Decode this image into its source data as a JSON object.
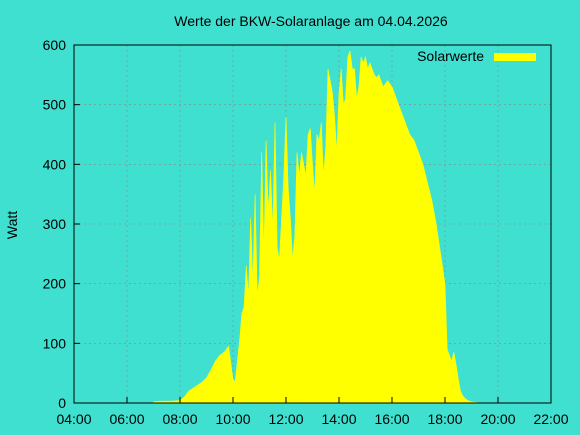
{
  "chart_data": {
    "type": "area",
    "title": "Werte der BKW-Solaranlage am 04.04.2026",
    "xlabel": "",
    "ylabel": "Watt",
    "xlim": [
      "04:00",
      "22:00"
    ],
    "ylim": [
      0,
      600
    ],
    "x_ticks": [
      "04:00",
      "06:00",
      "08:00",
      "10:00",
      "12:00",
      "14:00",
      "16:00",
      "18:00",
      "20:00",
      "22:00"
    ],
    "y_ticks": [
      0,
      100,
      200,
      300,
      400,
      500,
      600
    ],
    "grid": true,
    "legend": "top-right",
    "colors": {
      "background": "#40e0d0",
      "series": "#ffff00",
      "grid": "#888888"
    },
    "series": [
      {
        "name": "Solarwerte",
        "x": [
          "07:00",
          "07:20",
          "07:40",
          "08:00",
          "08:10",
          "08:20",
          "08:30",
          "08:40",
          "08:50",
          "09:00",
          "09:10",
          "09:20",
          "09:30",
          "09:40",
          "09:50",
          "10:00",
          "10:05",
          "10:10",
          "10:15",
          "10:20",
          "10:25",
          "10:30",
          "10:35",
          "10:40",
          "10:45",
          "10:50",
          "10:55",
          "11:00",
          "11:05",
          "11:10",
          "11:15",
          "11:20",
          "11:25",
          "11:30",
          "11:35",
          "11:40",
          "11:45",
          "11:50",
          "11:55",
          "12:00",
          "12:05",
          "12:10",
          "12:15",
          "12:20",
          "12:25",
          "12:30",
          "12:35",
          "12:40",
          "12:45",
          "12:50",
          "12:55",
          "13:00",
          "13:05",
          "13:10",
          "13:15",
          "13:20",
          "13:25",
          "13:30",
          "13:35",
          "13:40",
          "13:45",
          "13:50",
          "13:55",
          "14:00",
          "14:05",
          "14:10",
          "14:15",
          "14:20",
          "14:25",
          "14:30",
          "14:35",
          "14:40",
          "14:45",
          "14:50",
          "14:55",
          "15:00",
          "15:05",
          "15:10",
          "15:15",
          "15:20",
          "15:25",
          "15:30",
          "15:40",
          "15:50",
          "16:00",
          "16:10",
          "16:20",
          "16:30",
          "16:40",
          "16:50",
          "17:00",
          "17:10",
          "17:20",
          "17:30",
          "17:40",
          "17:50",
          "18:00",
          "18:05",
          "18:10",
          "18:15",
          "18:20",
          "18:25",
          "18:30",
          "18:35",
          "18:40",
          "18:45",
          "18:50",
          "18:55",
          "19:00",
          "19:10",
          "19:20",
          "19:30",
          "19:40",
          "19:50"
        ],
        "values": [
          2,
          3,
          3,
          4,
          10,
          20,
          25,
          30,
          35,
          42,
          55,
          70,
          80,
          85,
          95,
          40,
          35,
          70,
          105,
          150,
          160,
          230,
          180,
          310,
          200,
          350,
          180,
          210,
          420,
          250,
          440,
          320,
          390,
          290,
          470,
          260,
          240,
          310,
          380,
          480,
          360,
          310,
          240,
          280,
          420,
          380,
          420,
          400,
          380,
          450,
          460,
          400,
          350,
          450,
          440,
          470,
          380,
          430,
          560,
          540,
          520,
          480,
          420,
          520,
          560,
          500,
          510,
          580,
          590,
          560,
          560,
          510,
          530,
          580,
          570,
          580,
          560,
          570,
          560,
          550,
          545,
          550,
          530,
          540,
          530,
          510,
          490,
          470,
          450,
          440,
          420,
          400,
          370,
          340,
          300,
          250,
          200,
          90,
          80,
          70,
          85,
          65,
          40,
          20,
          12,
          8,
          5,
          3,
          2,
          1,
          0,
          0,
          0,
          0
        ]
      }
    ]
  }
}
